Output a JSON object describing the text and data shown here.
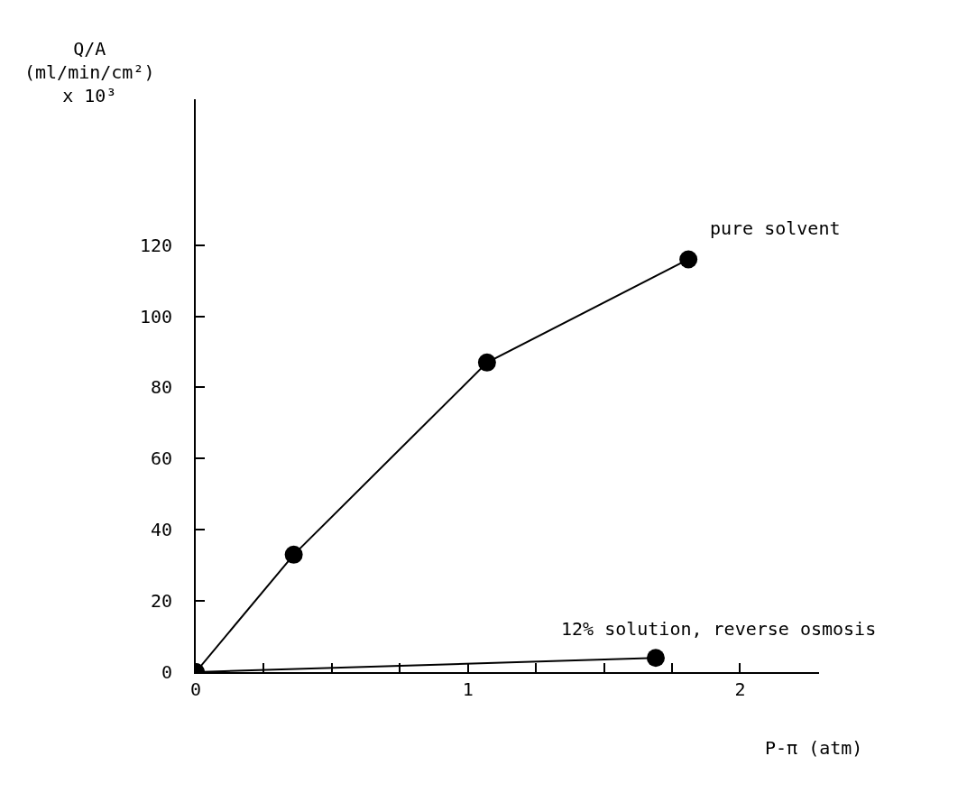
{
  "chart_data": {
    "type": "line",
    "xlabel": "P-π (atm)",
    "ylabel": "Q/A\n(ml/min/cm²)\nx 10³",
    "xlim": [
      0,
      2.29
    ],
    "ylim": [
      0,
      161
    ],
    "xticks": [
      0,
      {
        "value": 0.25,
        "label": null
      },
      {
        "value": 0.5,
        "label": null
      },
      {
        "value": 0.75,
        "label": null
      },
      1,
      {
        "value": 1.25,
        "label": null
      },
      {
        "value": 1.5,
        "label": null
      },
      {
        "value": 1.75,
        "label": null
      },
      2
    ],
    "yticks": [
      0,
      20,
      40,
      60,
      80,
      100,
      120
    ],
    "grid": false,
    "legend": false,
    "marker": "circle",
    "line_style": "solid",
    "series": [
      {
        "name": "pure solvent",
        "color": "#000000",
        "x": [
          0,
          0.36,
          1.07,
          1.81
        ],
        "values": [
          0,
          33,
          87,
          116
        ]
      },
      {
        "name": "12% solution, reverse osmosis",
        "color": "#000000",
        "x": [
          0,
          1.69
        ],
        "values": [
          0,
          4
        ]
      }
    ]
  }
}
